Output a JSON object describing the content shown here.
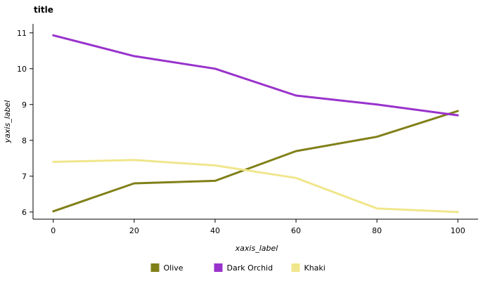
{
  "chart_data": {
    "type": "line",
    "title": "title",
    "xlabel": "xaxis_label",
    "ylabel": "yaxis_label",
    "xlim": [
      -5,
      105
    ],
    "ylim": [
      5.8,
      11.25
    ],
    "x_ticks": [
      0,
      20,
      40,
      60,
      80,
      100
    ],
    "y_ticks": [
      6,
      7,
      8,
      9,
      10,
      11
    ],
    "x_tick_labels": [
      "0",
      "20",
      "40",
      "60",
      "80",
      "100"
    ],
    "y_tick_labels": [
      "6",
      "7",
      "8",
      "9",
      "10",
      "11"
    ],
    "grid": false,
    "legend_position": "bottom",
    "series": [
      {
        "name": "Olive",
        "color": "#808019",
        "x": [
          0,
          20,
          40,
          60,
          80,
          100
        ],
        "y": [
          6.02,
          6.8,
          6.87,
          7.7,
          8.1,
          8.82
        ]
      },
      {
        "name": "Dark Orchid",
        "color": "#9932CC",
        "x": [
          0,
          20,
          40,
          60,
          80,
          100
        ],
        "y": [
          10.93,
          10.35,
          10.0,
          9.25,
          9.0,
          8.7
        ]
      },
      {
        "name": "Khaki",
        "color": "#F0E68C",
        "x": [
          0,
          20,
          40,
          60,
          80,
          100
        ],
        "y": [
          7.4,
          7.45,
          7.3,
          6.95,
          6.1,
          6.0
        ]
      }
    ]
  }
}
